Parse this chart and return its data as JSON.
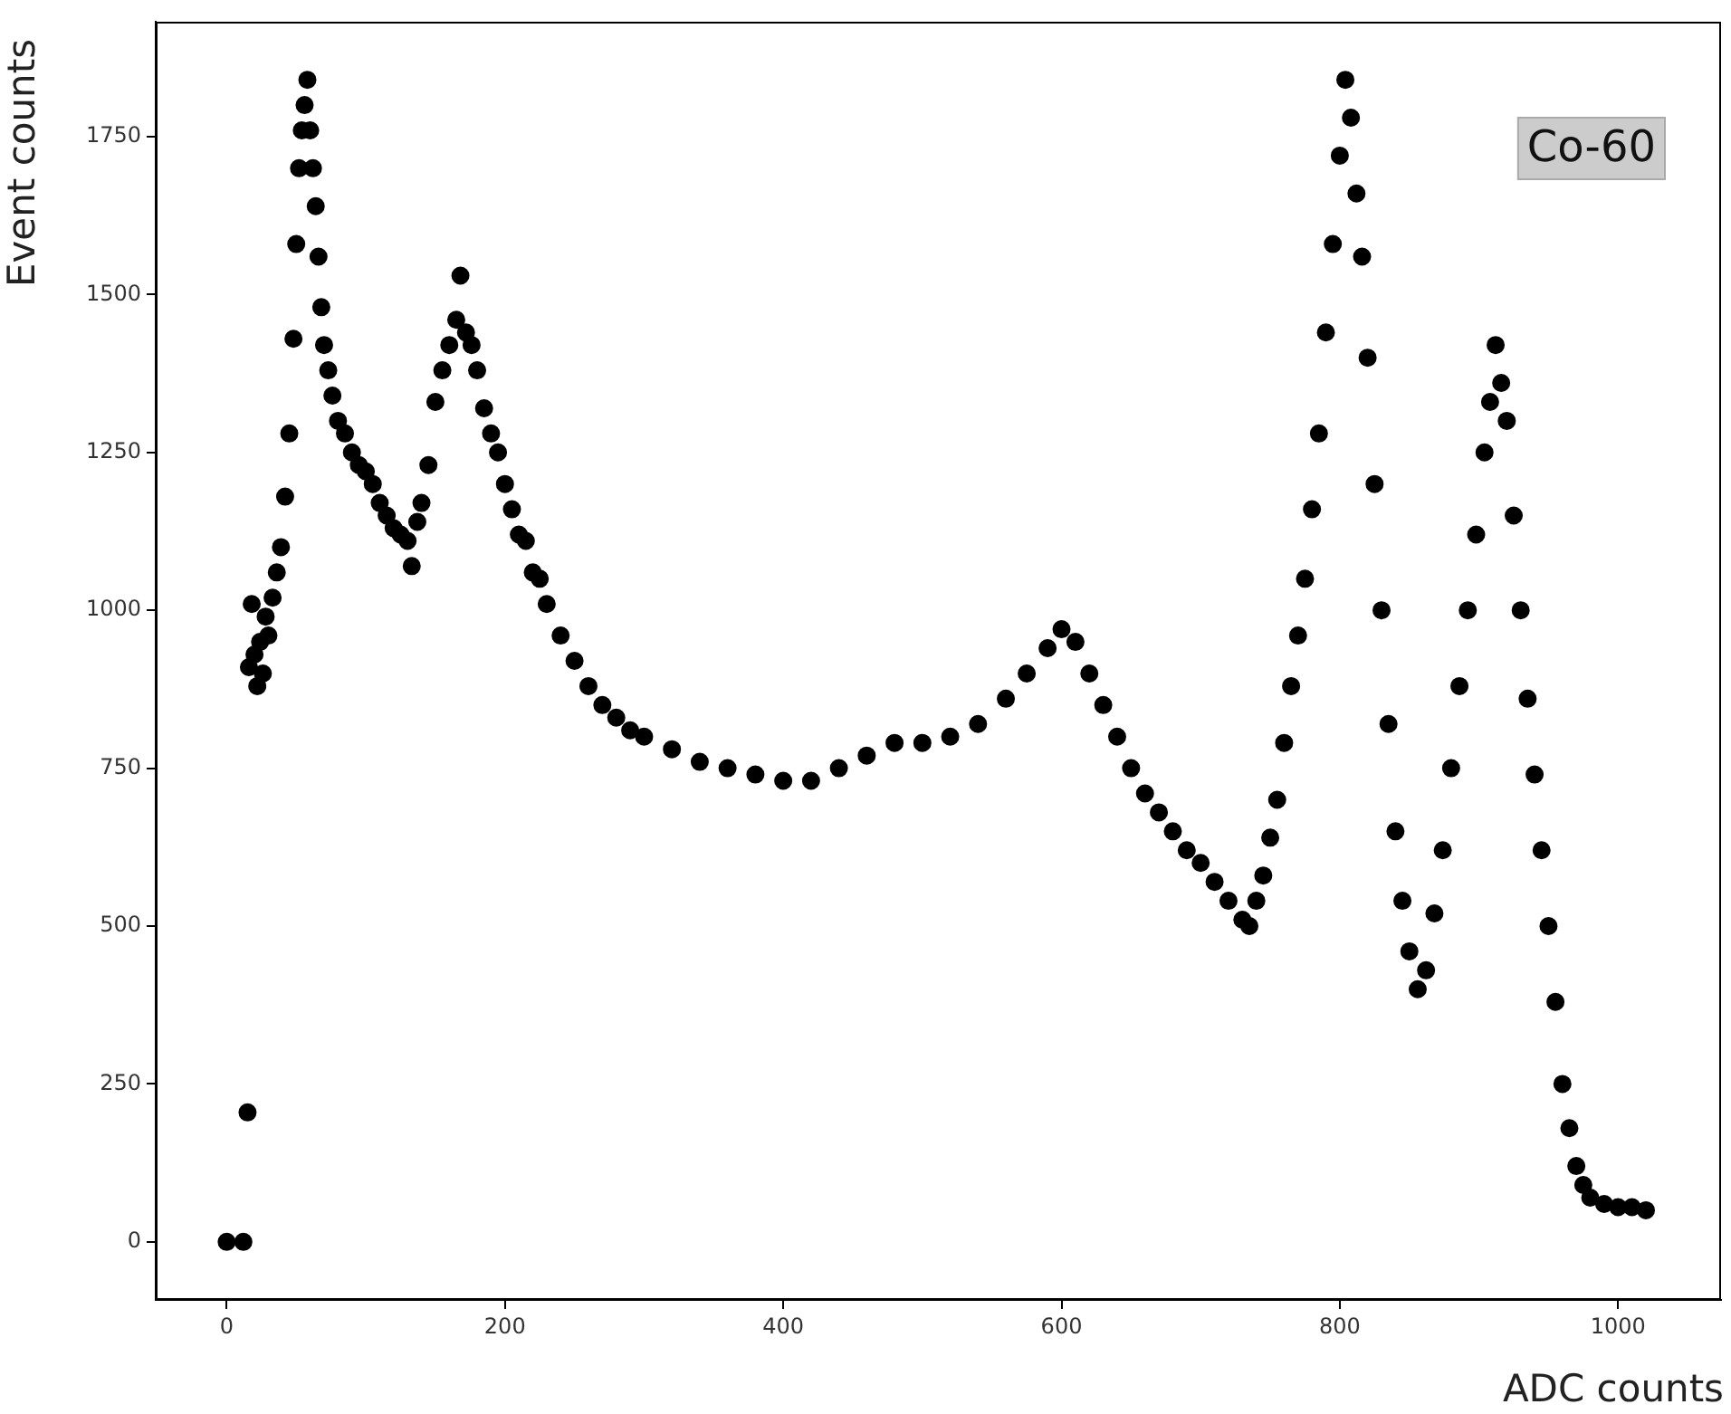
{
  "chart_data": {
    "type": "scatter",
    "xlabel": "ADC counts",
    "ylabel": "Event counts",
    "annotations": [
      "Co-60"
    ],
    "xlim": [
      -51,
      1074
    ],
    "ylim": [
      -92,
      1932
    ],
    "xticks": [
      0,
      200,
      400,
      600,
      800,
      1000
    ],
    "yticks": [
      0,
      250,
      500,
      750,
      1000,
      1250,
      1500,
      1750
    ],
    "grid": false,
    "legend": false,
    "marker": "circle",
    "series": [
      {
        "color": "#000000",
        "x": [
          0,
          12,
          15,
          16,
          18,
          20,
          22,
          24,
          26,
          28,
          30,
          33,
          36,
          39,
          42,
          45,
          48,
          50,
          52,
          54,
          56,
          58,
          60,
          62,
          64,
          66,
          68,
          70,
          73,
          76,
          80,
          85,
          90,
          95,
          100,
          105,
          110,
          115,
          120,
          125,
          130,
          133,
          137,
          140,
          145,
          150,
          155,
          160,
          165,
          168,
          172,
          176,
          180,
          185,
          190,
          195,
          200,
          205,
          210,
          215,
          220,
          225,
          230,
          240,
          250,
          260,
          270,
          280,
          290,
          300,
          320,
          340,
          360,
          380,
          400,
          420,
          440,
          460,
          480,
          500,
          520,
          540,
          560,
          575,
          590,
          600,
          610,
          620,
          630,
          640,
          650,
          660,
          670,
          680,
          690,
          700,
          710,
          720,
          730,
          735,
          740,
          745,
          750,
          755,
          760,
          765,
          770,
          775,
          780,
          785,
          790,
          795,
          800,
          804,
          808,
          812,
          816,
          820,
          825,
          830,
          835,
          840,
          845,
          850,
          856,
          862,
          868,
          874,
          880,
          886,
          892,
          898,
          904,
          908,
          912,
          916,
          920,
          925,
          930,
          935,
          940,
          945,
          950,
          955,
          960,
          965,
          970,
          975,
          980,
          990,
          1000,
          1010,
          1020
        ],
        "values": [
          0,
          0,
          205,
          910,
          1010,
          930,
          880,
          950,
          900,
          990,
          960,
          1020,
          1060,
          1100,
          1180,
          1280,
          1430,
          1580,
          1700,
          1760,
          1800,
          1840,
          1760,
          1700,
          1640,
          1560,
          1480,
          1420,
          1380,
          1340,
          1300,
          1280,
          1250,
          1230,
          1220,
          1200,
          1170,
          1150,
          1130,
          1120,
          1110,
          1070,
          1140,
          1170,
          1230,
          1330,
          1380,
          1420,
          1460,
          1530,
          1440,
          1420,
          1380,
          1320,
          1280,
          1250,
          1200,
          1160,
          1120,
          1110,
          1060,
          1050,
          1010,
          960,
          920,
          880,
          850,
          830,
          810,
          800,
          780,
          760,
          750,
          740,
          730,
          730,
          750,
          770,
          790,
          790,
          800,
          820,
          860,
          900,
          940,
          970,
          950,
          900,
          850,
          800,
          750,
          710,
          680,
          650,
          620,
          600,
          570,
          540,
          510,
          500,
          540,
          580,
          640,
          700,
          790,
          880,
          960,
          1050,
          1160,
          1280,
          1440,
          1580,
          1720,
          1840,
          1780,
          1660,
          1560,
          1400,
          1200,
          1000,
          820,
          650,
          540,
          460,
          400,
          430,
          520,
          620,
          750,
          880,
          1000,
          1120,
          1250,
          1330,
          1420,
          1360,
          1300,
          1150,
          1000,
          860,
          740,
          620,
          500,
          380,
          250,
          180,
          120,
          90,
          70,
          60,
          55,
          55,
          50
        ]
      }
    ]
  }
}
